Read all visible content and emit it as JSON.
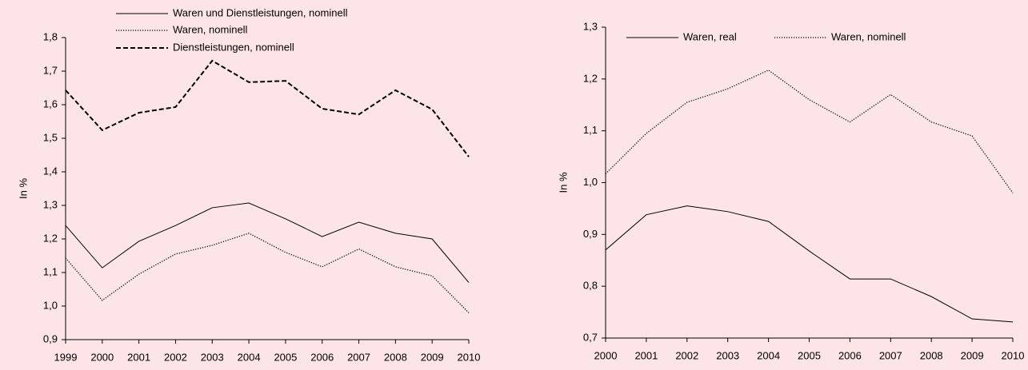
{
  "chart_data": [
    {
      "type": "line",
      "y_label": "In %",
      "categories": [
        "1999",
        "2000",
        "2001",
        "2002",
        "2003",
        "2004",
        "2005",
        "2006",
        "2007",
        "2008",
        "2009",
        "2010"
      ],
      "series": [
        {
          "name": "Waren und Dienstleistungen, nominell",
          "color": "#000000",
          "style": "solid",
          "values": [
            1.24,
            1.114,
            1.193,
            1.24,
            1.293,
            1.307,
            1.26,
            1.207,
            1.25,
            1.217,
            1.2,
            1.07
          ]
        },
        {
          "name": "Waren, nominell",
          "color": "#000000",
          "style": "dotted",
          "values": [
            1.143,
            1.017,
            1.095,
            1.155,
            1.181,
            1.217,
            1.16,
            1.117,
            1.17,
            1.117,
            1.09,
            0.98
          ]
        },
        {
          "name": "Dienstleistungen, nominell",
          "color": "#000000",
          "style": "dashed",
          "values": [
            1.643,
            1.524,
            1.576,
            1.593,
            1.731,
            1.667,
            1.671,
            1.588,
            1.571,
            1.643,
            1.586,
            1.445
          ]
        }
      ],
      "ylim": [
        0.9,
        1.8
      ],
      "yticks": [
        {
          "value": 0.9,
          "label": "0,9"
        },
        {
          "value": 1.0,
          "label": "1,0"
        },
        {
          "value": 1.1,
          "label": "1,1"
        },
        {
          "value": 1.2,
          "label": "1,2"
        },
        {
          "value": 1.3,
          "label": "1,3"
        },
        {
          "value": 1.4,
          "label": "1,4"
        },
        {
          "value": 1.5,
          "label": "1,5"
        },
        {
          "value": 1.6,
          "label": "1,6"
        },
        {
          "value": 1.7,
          "label": "1,7"
        },
        {
          "value": 1.8,
          "label": "1,8"
        }
      ],
      "grid": false
    },
    {
      "type": "line",
      "y_label": "In %",
      "categories": [
        "2000",
        "2001",
        "2002",
        "2003",
        "2004",
        "2005",
        "2006",
        "2007",
        "2008",
        "2009",
        "2010"
      ],
      "series": [
        {
          "name": "Waren, real",
          "color": "#000000",
          "style": "solid",
          "values": [
            0.87,
            0.938,
            0.955,
            0.944,
            0.925,
            0.868,
            0.814,
            0.814,
            0.78,
            0.737,
            0.731
          ]
        },
        {
          "name": "Waren, nominell",
          "color": "#000000",
          "style": "dotted",
          "values": [
            1.017,
            1.095,
            1.155,
            1.181,
            1.217,
            1.16,
            1.117,
            1.17,
            1.117,
            1.09,
            0.98
          ]
        }
      ],
      "ylim": [
        0.7,
        1.3
      ],
      "yticks": [
        {
          "value": 0.7,
          "label": "0,7"
        },
        {
          "value": 0.8,
          "label": "0,8"
        },
        {
          "value": 0.9,
          "label": "0,9"
        },
        {
          "value": 1.0,
          "label": "1,0"
        },
        {
          "value": 1.1,
          "label": "1,1"
        },
        {
          "value": 1.2,
          "label": "1,2"
        },
        {
          "value": 1.3,
          "label": "1,3"
        }
      ],
      "grid": false
    }
  ]
}
